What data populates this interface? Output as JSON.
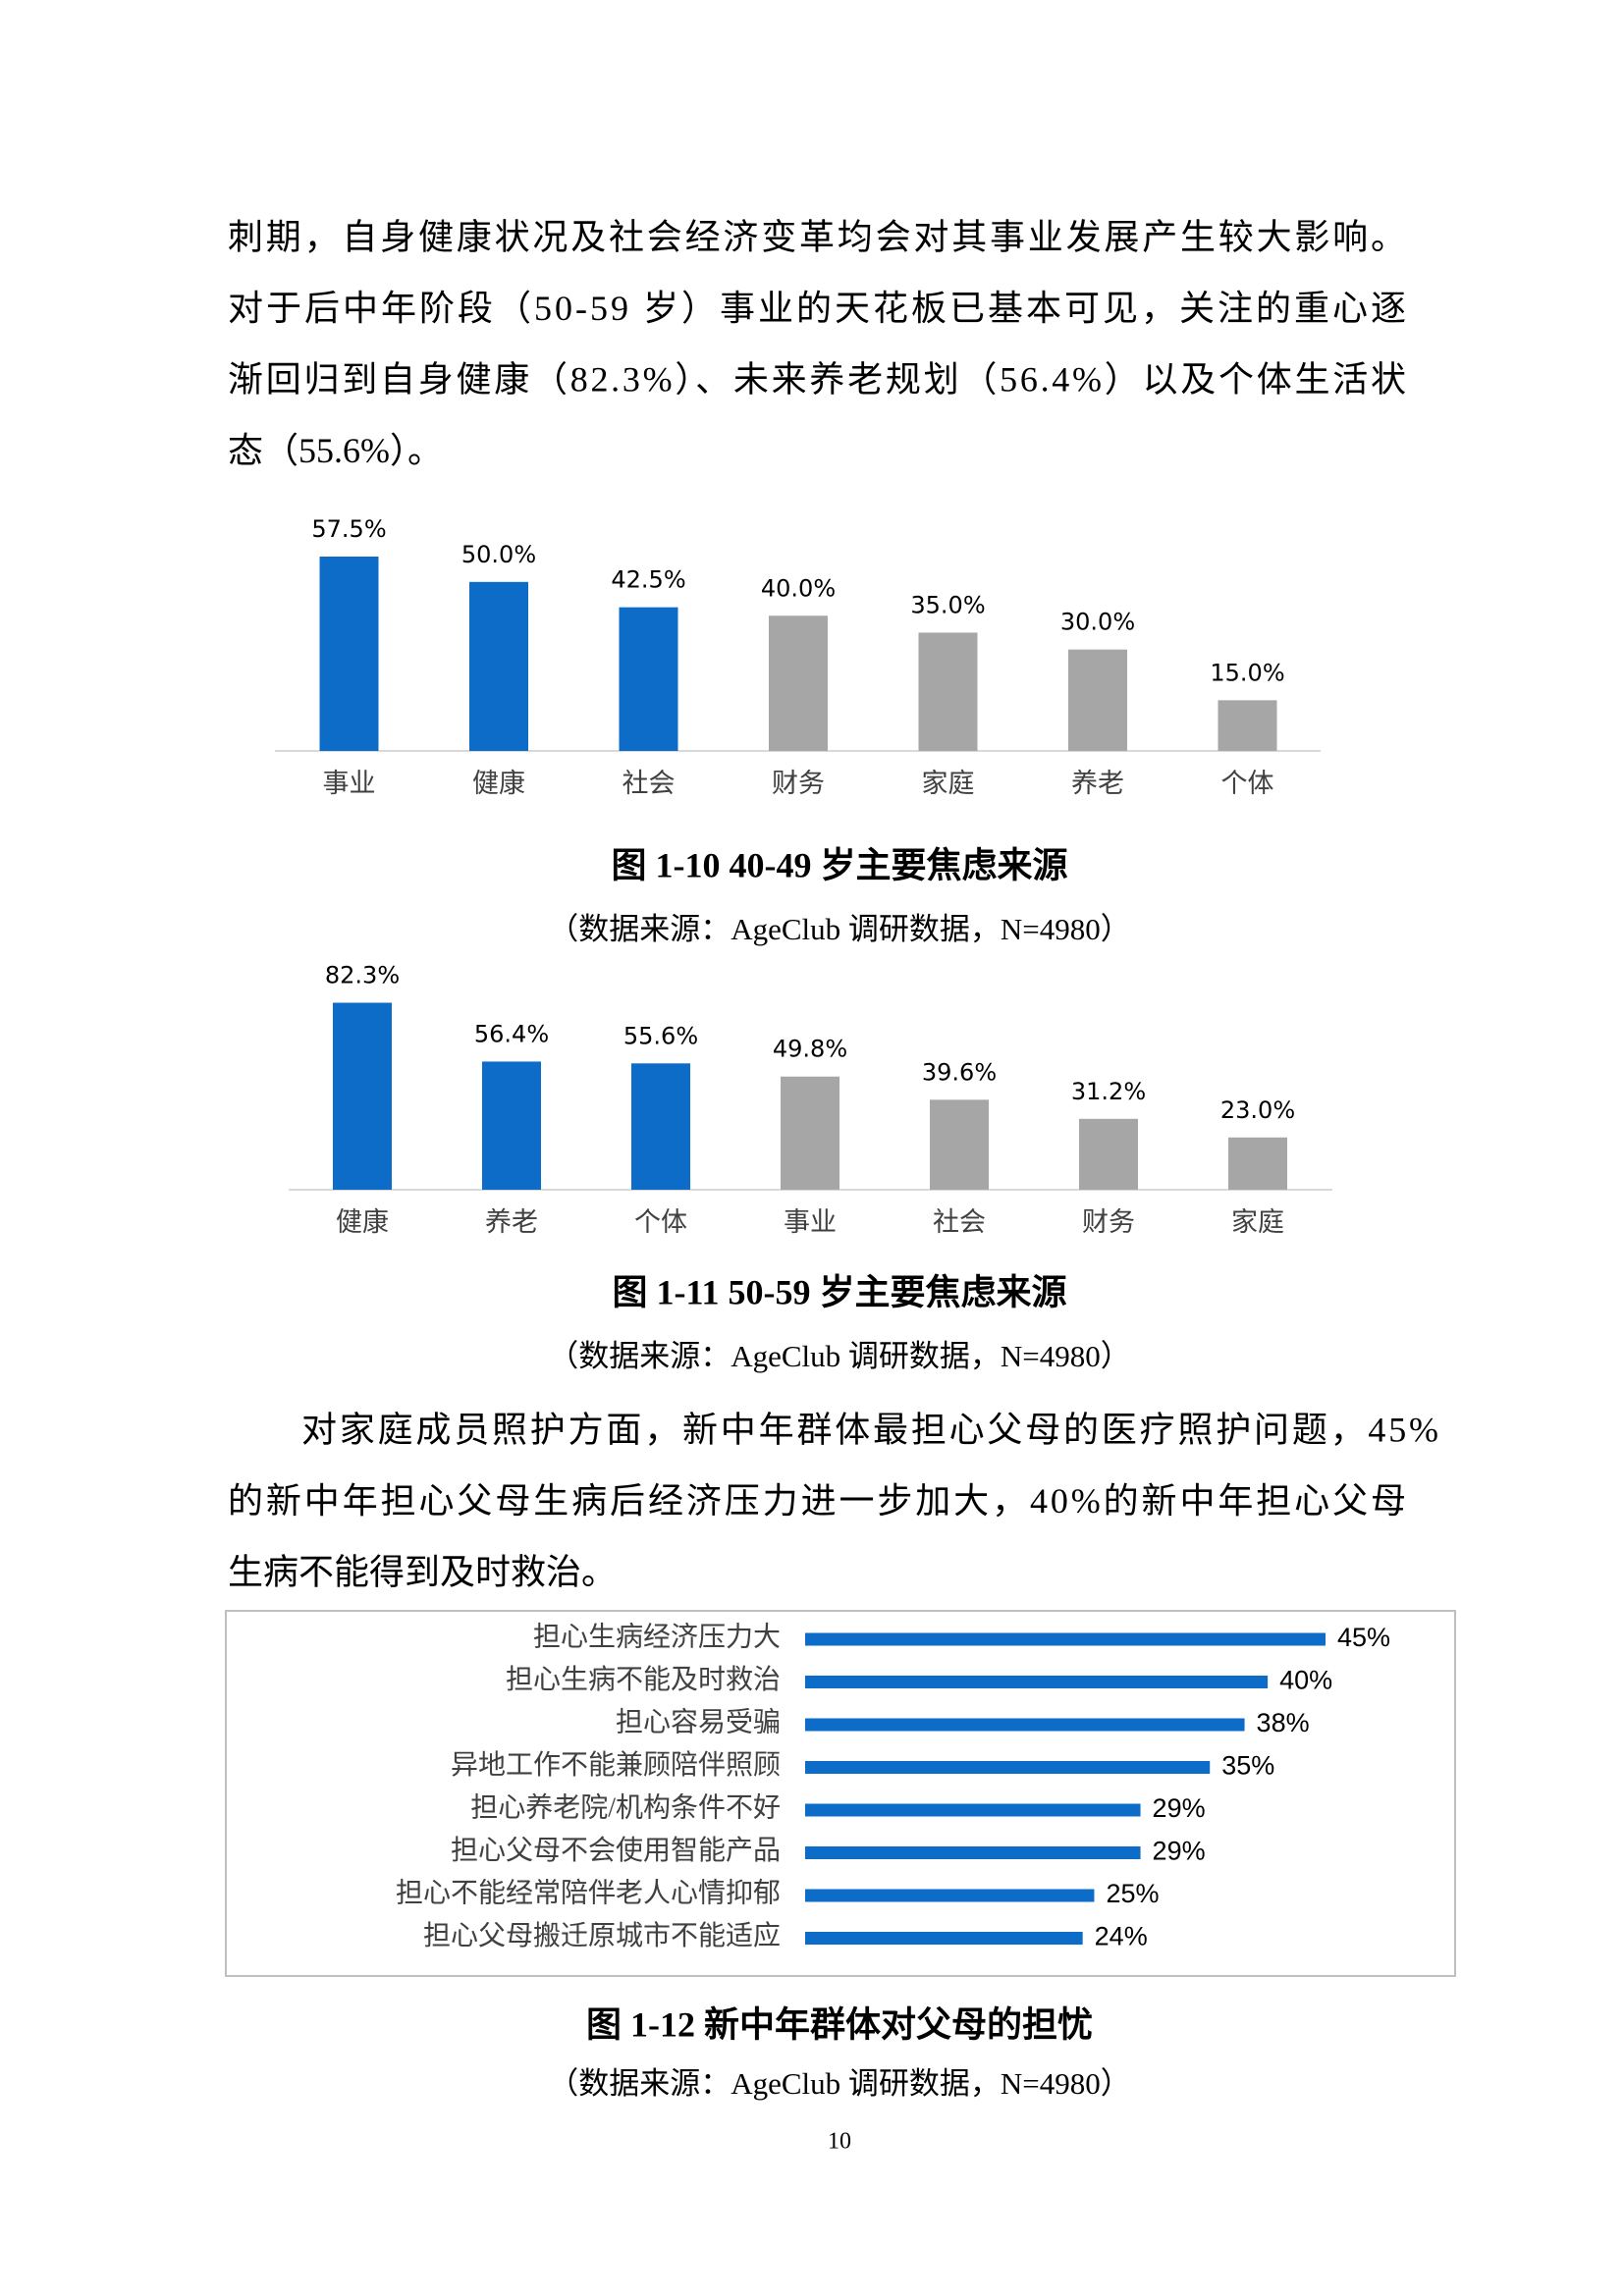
{
  "paragraphs": [
    {
      "lines": [
        "刺期，自身健康状况及社会经济变革均会对其事业发展产生较大影响。",
        "对于后中年阶段（50-59 岁）事业的天花板已基本可见，关注的重心逐",
        "渐回归到自身健康（82.3%）、未来养老规划（56.4%）以及个体生活状",
        "态（55.6%）。"
      ]
    },
    {
      "lines": [
        "对家庭成员照护方面，新中年群体最担心父母的医疗照护问题，45%",
        "的新中年担心父母生病后经济压力进一步加大，40%的新中年担心父母",
        "生病不能得到及时救治。"
      ]
    }
  ],
  "chart_data": [
    {
      "type": "bar",
      "title": "图 1-10 40-49 岁主要焦虑来源",
      "note": "（数据来源：AgeClub 调研数据，N=4980）",
      "categories": [
        "事业",
        "健康",
        "社会",
        "财务",
        "家庭",
        "养老",
        "个体"
      ],
      "values": [
        57.5,
        50.0,
        42.5,
        40.0,
        35.0,
        30.0,
        15.0
      ],
      "value_labels": [
        "57.5%",
        "50.0%",
        "42.5%",
        "40.0%",
        "35.0%",
        "30.0%",
        "15.0%"
      ],
      "colors": [
        "#0e6cc9",
        "#0e6cc9",
        "#0e6cc9",
        "#a6a6a6",
        "#a6a6a6",
        "#a6a6a6",
        "#a6a6a6"
      ]
    },
    {
      "type": "bar",
      "title": "图 1-11 50-59 岁主要焦虑来源",
      "note": "（数据来源：AgeClub 调研数据，N=4980）",
      "categories": [
        "健康",
        "养老",
        "个体",
        "事业",
        "社会",
        "财务",
        "家庭"
      ],
      "values": [
        82.3,
        56.4,
        55.6,
        49.8,
        39.6,
        31.2,
        23.0
      ],
      "value_labels": [
        "82.3%",
        "56.4%",
        "55.6%",
        "49.8%",
        "39.6%",
        "31.2%",
        "23.0%"
      ],
      "colors": [
        "#0e6cc9",
        "#0e6cc9",
        "#0e6cc9",
        "#a6a6a6",
        "#a6a6a6",
        "#a6a6a6",
        "#a6a6a6"
      ]
    },
    {
      "type": "hbar",
      "title": "图 1-12  新中年群体对父母的担忧",
      "note": "（数据来源：AgeClub 调研数据，N=4980）",
      "categories": [
        "担心生病经济压力大",
        "担心生病不能及时救治",
        "担心容易受骗",
        "异地工作不能兼顾陪伴照顾",
        "担心养老院/机构条件不好",
        "担心父母不会使用智能产品",
        "担心不能经常陪伴老人心情抑郁",
        "担心父母搬迁原城市不能适应"
      ],
      "values": [
        45,
        40,
        38,
        35,
        29,
        29,
        25,
        24
      ],
      "value_labels": [
        "45%",
        "40%",
        "38%",
        "35%",
        "29%",
        "29%",
        "25%",
        "24%"
      ],
      "color": "#0e6cc9"
    }
  ],
  "page_number": "10"
}
